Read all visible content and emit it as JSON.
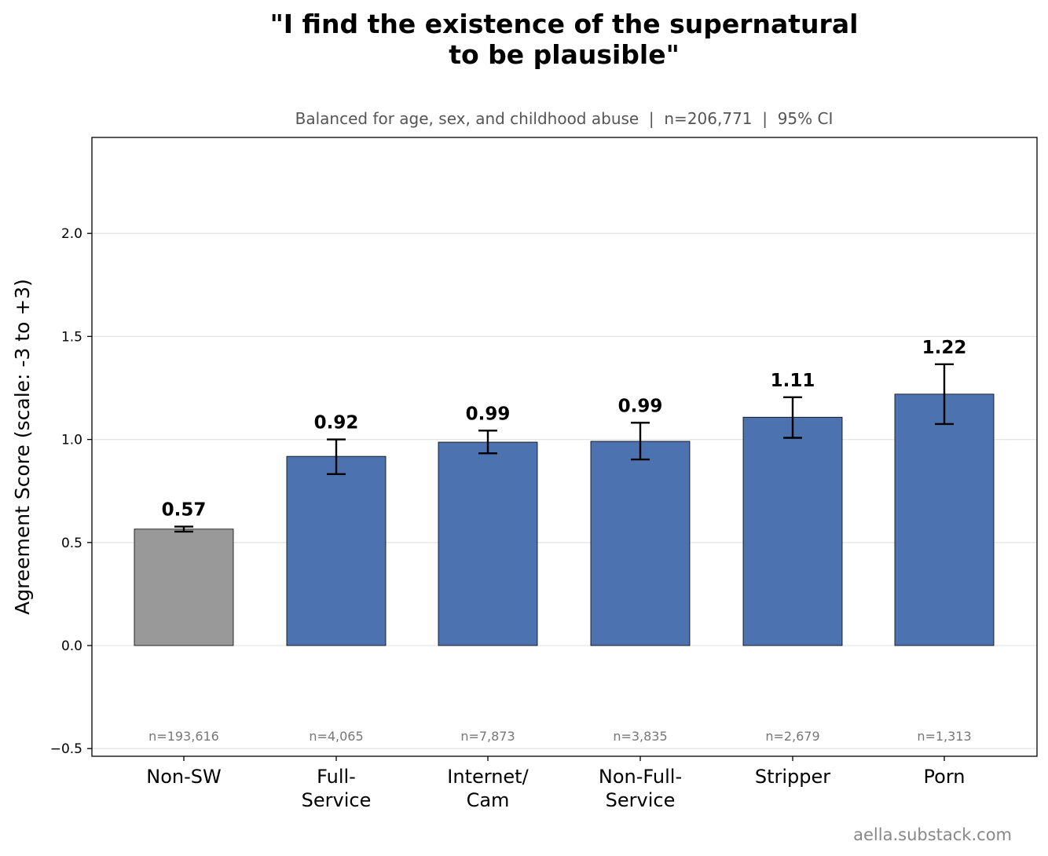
{
  "chart_data": {
    "type": "bar",
    "title_lines": [
      "\"I find the existence of the supernatural",
      "to be plausible\""
    ],
    "subtitle": "Balanced for age, sex, and childhood abuse  |  n=206,771  |  95% CI",
    "ylabel": "Agreement Score (scale: -3 to +3)",
    "ylim": [
      -0.53,
      2.47
    ],
    "yticks": [
      -0.5,
      0.0,
      0.5,
      1.0,
      1.5,
      2.0
    ],
    "ytick_labels": [
      "−0.5",
      "0.0",
      "0.5",
      "1.0",
      "1.5",
      "2.0"
    ],
    "grid": "horizontal",
    "categories": [
      [
        "Non-SW"
      ],
      [
        "Full-",
        "Service"
      ],
      [
        "Internet/",
        "Cam"
      ],
      [
        "Non-Full-",
        "Service"
      ],
      [
        "Stripper"
      ],
      [
        "Porn"
      ]
    ],
    "values": [
      0.565,
      0.918,
      0.987,
      0.991,
      1.108,
      1.22
    ],
    "value_labels": [
      "0.57",
      "0.92",
      "0.99",
      "0.99",
      "1.11",
      "1.22"
    ],
    "ci_low": [
      0.553,
      0.832,
      0.933,
      0.903,
      1.008,
      1.075
    ],
    "ci_high": [
      0.577,
      1.0,
      1.043,
      1.081,
      1.205,
      1.365
    ],
    "n_labels": [
      "n=193,616",
      "n=4,065",
      "n=7,873",
      "n=3,835",
      "n=2,679",
      "n=1,313"
    ],
    "colors": [
      "#999999",
      "#4c72b0",
      "#4c72b0",
      "#4c72b0",
      "#4c72b0",
      "#4c72b0"
    ]
  },
  "source": "aella.substack.com"
}
